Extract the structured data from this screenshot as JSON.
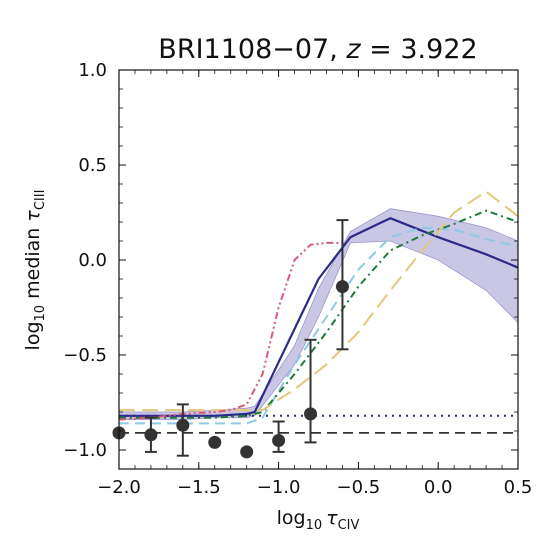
{
  "chart_data": {
    "type": "line",
    "title_prefix": "BRI1108−07, ",
    "title_z_symbol": "z",
    "title_suffix": " = 3.922",
    "xlabel_prefix": "log",
    "xlabel_sub": "10",
    "xlabel_symbol": "τ",
    "xlabel_symbol_sub": "CIV",
    "ylabel_prefix": "log",
    "ylabel_sub": "10",
    "ylabel_mid": " median ",
    "ylabel_symbol": "τ",
    "ylabel_symbol_sub": "CIII",
    "xlim": [
      -2.0,
      0.5
    ],
    "ylim": [
      -1.1,
      1.0
    ],
    "xticks": [
      -2.0,
      -1.5,
      -1.0,
      -0.5,
      0.0,
      0.5
    ],
    "xtick_labels": [
      "−2.0",
      "−1.5",
      "−1.0",
      "−0.5",
      "0.0",
      "0.5"
    ],
    "yticks": [
      -1.0,
      -0.5,
      0.0,
      0.5,
      1.0
    ],
    "ytick_labels": [
      "−1.0",
      "−0.5",
      "0.0",
      "0.5",
      "1.0"
    ],
    "grid": false,
    "observed_points": [
      {
        "x": -2.0,
        "y": -0.91,
        "err_low": 0.0,
        "err_high": 0.0
      },
      {
        "x": -1.8,
        "y": -0.92,
        "err_low": 0.09,
        "err_high": 0.09
      },
      {
        "x": -1.6,
        "y": -0.87,
        "err_low": 0.16,
        "err_high": 0.11
      },
      {
        "x": -1.4,
        "y": -0.96,
        "err_low": 0.0,
        "err_high": 0.0
      },
      {
        "x": -1.2,
        "y": -1.01,
        "err_low": 0.0,
        "err_high": 0.0
      },
      {
        "x": -1.0,
        "y": -0.95,
        "err_low": 0.06,
        "err_high": 0.1
      },
      {
        "x": -0.8,
        "y": -0.81,
        "err_low": 0.15,
        "err_high": 0.39
      },
      {
        "x": -0.6,
        "y": -0.14,
        "err_low": 0.33,
        "err_high": 0.35
      }
    ],
    "hlines": [
      {
        "y": -0.82,
        "style": "dotted",
        "color": "#2e2a6e"
      },
      {
        "y": -0.91,
        "style": "dashed",
        "color": "#333333"
      }
    ],
    "shaded_band": {
      "color": "#b8b3dc",
      "x": [
        -2.0,
        -1.8,
        -1.6,
        -1.4,
        -1.2,
        -1.15,
        -0.9,
        -0.75,
        -0.55,
        -0.3,
        0.0,
        0.3,
        0.5
      ],
      "upper": [
        -0.8,
        -0.8,
        -0.8,
        -0.79,
        -0.78,
        -0.77,
        -0.45,
        -0.15,
        0.15,
        0.27,
        0.23,
        0.17,
        0.1
      ],
      "lower": [
        -0.84,
        -0.84,
        -0.84,
        -0.83,
        -0.83,
        -0.82,
        -0.55,
        -0.3,
        0.09,
        0.1,
        0.0,
        -0.16,
        -0.33
      ]
    },
    "series": [
      {
        "color": "#2e2a8a",
        "dash": "solid",
        "width": 2.2,
        "x": [
          -2.0,
          -1.8,
          -1.6,
          -1.4,
          -1.2,
          -1.15,
          -0.75,
          -0.55,
          -0.3,
          0.0,
          0.3,
          0.5
        ],
        "y": [
          -0.82,
          -0.82,
          -0.82,
          -0.82,
          -0.81,
          -0.8,
          -0.1,
          0.12,
          0.22,
          0.12,
          0.03,
          -0.04
        ]
      },
      {
        "color": "#8ec9e6",
        "dash": "dashed",
        "width": 2.0,
        "x": [
          -2.0,
          -1.8,
          -1.6,
          -1.4,
          -1.2,
          -1.1,
          -0.9,
          -0.7,
          -0.5,
          -0.3,
          -0.1,
          0.1,
          0.3,
          0.5
        ],
        "y": [
          -0.86,
          -0.86,
          -0.86,
          -0.86,
          -0.86,
          -0.83,
          -0.55,
          -0.3,
          -0.05,
          0.12,
          0.17,
          0.16,
          0.11,
          0.07
        ]
      },
      {
        "color": "#1e7a3a",
        "dash": "dashdot",
        "width": 2.0,
        "x": [
          -2.0,
          -1.8,
          -1.6,
          -1.4,
          -1.2,
          -1.1,
          -0.9,
          -0.7,
          -0.5,
          -0.3,
          -0.1,
          0.1,
          0.3,
          0.5
        ],
        "y": [
          -0.83,
          -0.83,
          -0.83,
          -0.83,
          -0.82,
          -0.8,
          -0.6,
          -0.38,
          -0.14,
          0.05,
          0.13,
          0.19,
          0.26,
          0.2
        ]
      },
      {
        "color": "#e3c879",
        "dash": "longdash",
        "width": 2.0,
        "x": [
          -2.0,
          -1.8,
          -1.6,
          -1.4,
          -1.2,
          -1.1,
          -0.9,
          -0.7,
          -0.5,
          -0.3,
          -0.1,
          0.1,
          0.3,
          0.5
        ],
        "y": [
          -0.79,
          -0.79,
          -0.79,
          -0.79,
          -0.79,
          -0.79,
          -0.68,
          -0.55,
          -0.38,
          -0.16,
          0.05,
          0.25,
          0.36,
          0.23
        ]
      },
      {
        "color": "#d85a78",
        "dash": "dashdotdot",
        "width": 2.0,
        "x": [
          -2.0,
          -1.8,
          -1.6,
          -1.4,
          -1.3,
          -1.2,
          -1.1,
          -1.0,
          -0.9,
          -0.8,
          -0.7,
          -0.6
        ],
        "y": [
          -0.84,
          -0.83,
          -0.81,
          -0.8,
          -0.79,
          -0.76,
          -0.6,
          -0.25,
          0.0,
          0.08,
          0.09,
          0.09
        ]
      }
    ]
  }
}
